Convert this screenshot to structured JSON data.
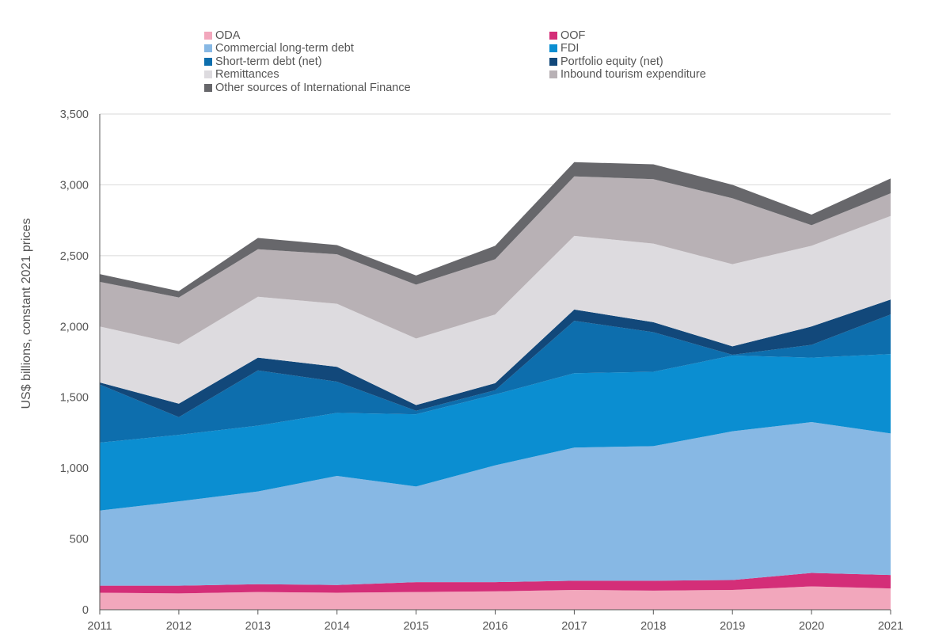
{
  "chart_data": {
    "type": "area",
    "stacked": true,
    "title": "",
    "xlabel": "",
    "ylabel": "US$ billions, constant 2021 prices",
    "x": [
      "2011",
      "2012",
      "2013",
      "2014",
      "2015",
      "2016",
      "2017",
      "2018",
      "2019",
      "2020",
      "2021"
    ],
    "ylim": [
      0,
      3500
    ],
    "yticks": [
      0,
      500,
      1000,
      1500,
      2000,
      2500,
      3000,
      3500
    ],
    "ytick_labels": [
      "0",
      "500",
      "1,000",
      "1,500",
      "2,000",
      "2,500",
      "3,000",
      "3,500"
    ],
    "grid": "horizontal",
    "legend_position": "top",
    "series": [
      {
        "name": "ODA",
        "color": "#F2A7BC",
        "values": [
          120,
          115,
          125,
          120,
          125,
          130,
          140,
          135,
          140,
          165,
          150
        ]
      },
      {
        "name": "OOF",
        "color": "#D42E78",
        "values": [
          50,
          55,
          55,
          55,
          70,
          65,
          65,
          70,
          70,
          95,
          95
        ]
      },
      {
        "name": "Commercial long-term debt",
        "color": "#87B8E4",
        "values": [
          530,
          595,
          655,
          770,
          675,
          825,
          940,
          950,
          1050,
          1065,
          1000
        ]
      },
      {
        "name": "FDI",
        "color": "#0B8ED1",
        "values": [
          480,
          470,
          465,
          445,
          510,
          500,
          525,
          525,
          535,
          455,
          560
        ]
      },
      {
        "name": "Short-term debt (net)",
        "color": "#0D6EAD",
        "values": [
          410,
          125,
          390,
          220,
          25,
          30,
          370,
          280,
          5,
          90,
          280
        ]
      },
      {
        "name": "Portfolio equity (net)",
        "color": "#12487A",
        "values": [
          15,
          95,
          90,
          105,
          40,
          50,
          80,
          70,
          60,
          130,
          105
        ]
      },
      {
        "name": "Remittances",
        "color": "#DDDBDF",
        "values": [
          395,
          420,
          430,
          445,
          470,
          485,
          520,
          555,
          580,
          570,
          590
        ]
      },
      {
        "name": "Inbound tourism expenditure",
        "color": "#B8B1B5",
        "values": [
          315,
          330,
          335,
          350,
          380,
          390,
          420,
          455,
          465,
          145,
          160
        ]
      },
      {
        "name": "Other sources of International Finance",
        "color": "#67676B",
        "values": [
          55,
          45,
          80,
          65,
          65,
          95,
          100,
          105,
          95,
          75,
          105
        ]
      }
    ]
  }
}
